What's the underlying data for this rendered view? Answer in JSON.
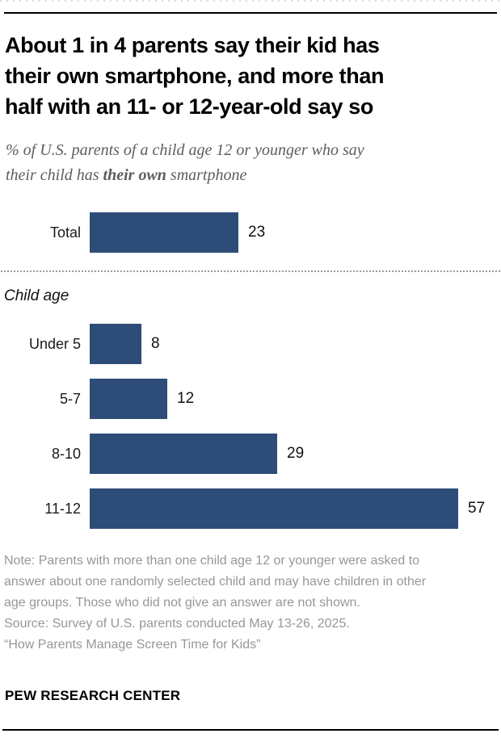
{
  "header": {
    "title_lines": [
      "About 1 in 4 parents say their kid has",
      "their own smartphone, and more than",
      "half with an 11- or 12-year-old say so"
    ],
    "subtitle_line1": "% of U.S. parents of a child age 12 or younger who say",
    "subtitle_line2_prefix": "their child has ",
    "subtitle_line2_bold": "their own",
    "subtitle_line2_suffix": " smartphone"
  },
  "chart_data": {
    "type": "bar",
    "orientation": "horizontal",
    "unit": "%",
    "bar_color": "#2e4c78",
    "value_range": [
      0,
      60
    ],
    "value_labels_shown": true,
    "axis_ticks": "none",
    "legend": "none",
    "rows": [
      {
        "label": "Total",
        "value": 23
      },
      {
        "label": "Under 5",
        "value": 8
      },
      {
        "label": "5-7",
        "value": 12
      },
      {
        "label": "8-10",
        "value": 29
      },
      {
        "label": "11-12",
        "value": 57
      }
    ],
    "group_label": "Child age",
    "group_applies_to_rows": [
      "Under 5",
      "5-7",
      "8-10",
      "11-12"
    ]
  },
  "footer": {
    "note": "Note: Parents with more than one child age 12 or younger were asked to answer about one randomly selected child and may have children in other age groups. Those who did not give an answer are not shown.",
    "source": "Source: Survey of U.S. parents conducted May 13-26, 2025.",
    "report_title": "“How Parents Manage Screen Time for Kids”",
    "brand": "PEW RESEARCH CENTER"
  }
}
